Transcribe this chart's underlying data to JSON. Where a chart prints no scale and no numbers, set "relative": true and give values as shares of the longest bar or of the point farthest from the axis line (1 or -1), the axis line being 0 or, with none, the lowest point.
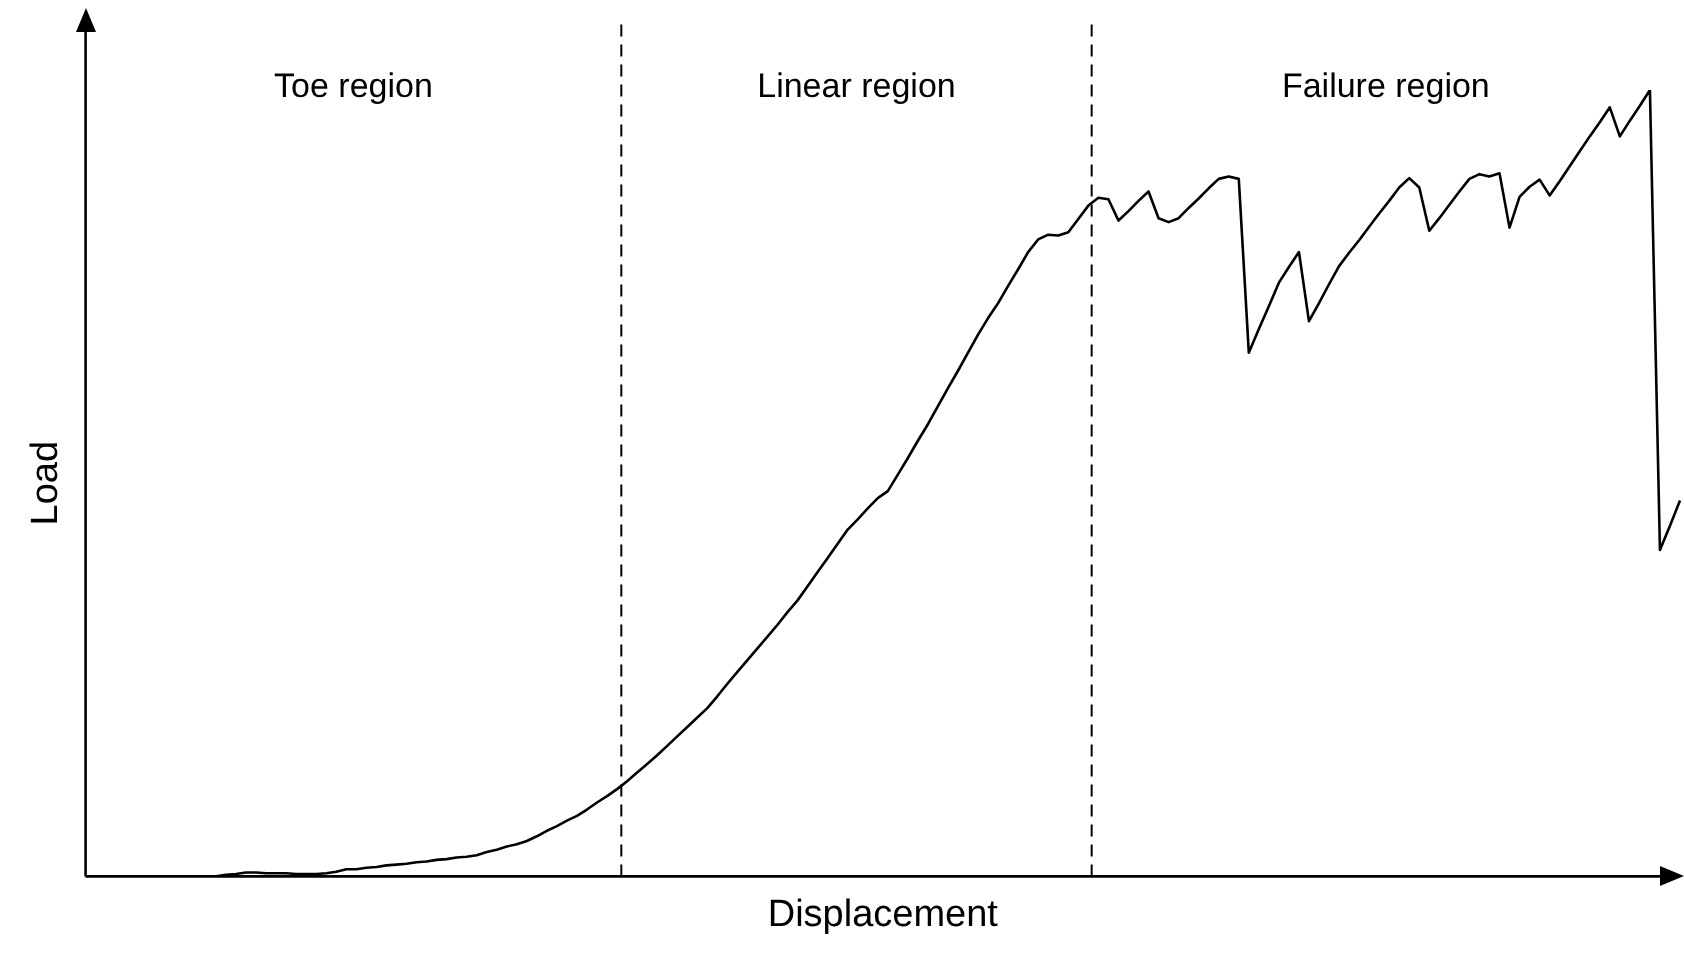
{
  "chart_data": {
    "type": "line",
    "relative": true,
    "xlabel": "Displacement",
    "ylabel": "Load",
    "tick_labels": false,
    "grid": false,
    "legend": false,
    "marker": "none",
    "line_style": "solid",
    "annotations": [
      "Toe region",
      "Linear region",
      "Failure region"
    ],
    "categories": [
      null,
      null,
      null,
      null,
      null,
      null,
      null,
      null,
      null,
      null,
      null,
      null,
      null,
      null,
      null,
      null,
      null,
      null,
      null,
      null,
      null,
      null,
      null,
      null,
      null,
      null,
      null,
      null,
      null,
      null,
      null,
      null,
      null,
      null,
      null,
      null,
      null,
      null,
      null,
      null,
      null,
      null,
      null,
      null,
      null,
      null,
      null,
      null,
      null,
      null,
      null,
      null,
      null,
      null,
      null,
      null,
      null,
      null,
      null,
      null,
      null,
      null,
      null,
      null,
      null,
      null,
      null,
      null,
      null,
      null,
      null,
      null,
      null,
      null,
      null,
      null,
      null,
      null,
      null,
      null,
      null,
      null,
      null,
      null,
      null,
      null,
      null,
      null,
      null,
      null,
      null,
      null,
      null,
      null,
      null,
      null,
      null,
      null,
      null,
      null,
      null,
      null,
      null,
      null,
      null,
      null,
      null,
      null,
      null,
      null,
      null,
      null,
      null,
      null,
      null,
      null,
      null,
      null,
      null,
      null,
      null,
      null,
      null,
      null,
      null,
      null,
      null,
      null,
      null,
      null,
      null,
      null,
      null,
      null,
      null,
      null,
      null,
      null,
      null,
      null,
      null,
      null,
      null,
      null,
      null,
      null,
      null,
      null,
      null,
      null,
      null,
      null,
      null,
      null,
      null,
      null,
      null,
      null,
      null,
      null
    ],
    "series": [
      {
        "color": "#000000",
        "values": [
          null,
          null,
          null,
          null,
          null,
          null,
          null,
          0,
          0,
          0,
          0,
          0,
          0,
          0,
          0.002,
          0.003,
          0.005,
          0.005,
          0.004,
          0.004,
          0.004,
          0.003,
          0.003,
          0.003,
          0.004,
          0.006,
          0.009,
          0.009,
          0.011,
          0.012,
          0.014,
          0.015,
          0.016,
          0.018,
          0.019,
          0.021,
          0.022,
          0.024,
          0.025,
          0.027,
          0.031,
          0.034,
          0.038,
          0.041,
          0.045,
          0.051,
          0.058,
          0.064,
          0.071,
          0.077,
          0.085,
          0.094,
          0.102,
          0.111,
          0.121,
          0.132,
          0.143,
          0.154,
          0.166,
          0.178,
          0.19,
          0.202,
          0.214,
          0.229,
          0.245,
          0.26,
          0.275,
          0.29,
          0.305,
          0.32,
          0.336,
          0.351,
          0.369,
          0.387,
          0.405,
          0.423,
          0.441,
          0.454,
          0.468,
          0.481,
          0.49,
          0.511,
          0.532,
          0.554,
          0.575,
          0.598,
          0.621,
          0.643,
          0.666,
          0.689,
          0.71,
          0.729,
          0.751,
          0.772,
          0.794,
          0.81,
          0.816,
          0.815,
          0.819,
          0.836,
          0.853,
          0.863,
          0.861,
          0.834,
          0.846,
          0.859,
          0.871,
          0.837,
          0.832,
          0.837,
          0.85,
          0.862,
          0.875,
          0.887,
          0.89,
          0.887,
          0.666,
          0.696,
          0.725,
          0.755,
          0.775,
          0.794,
          0.706,
          0.729,
          0.753,
          0.776,
          0.793,
          0.809,
          0.826,
          0.843,
          0.859,
          0.876,
          0.888,
          0.876,
          0.821,
          0.837,
          0.854,
          0.871,
          0.887,
          0.893,
          0.89,
          0.894,
          0.825,
          0.864,
          0.877,
          0.886,
          0.866,
          0.884,
          0.903,
          0.922,
          0.941,
          0.959,
          0.978,
          0.941,
          0.961,
          0.98,
          1,
          0.415,
          0.446,
          0.478
        ]
      }
    ]
  }
}
